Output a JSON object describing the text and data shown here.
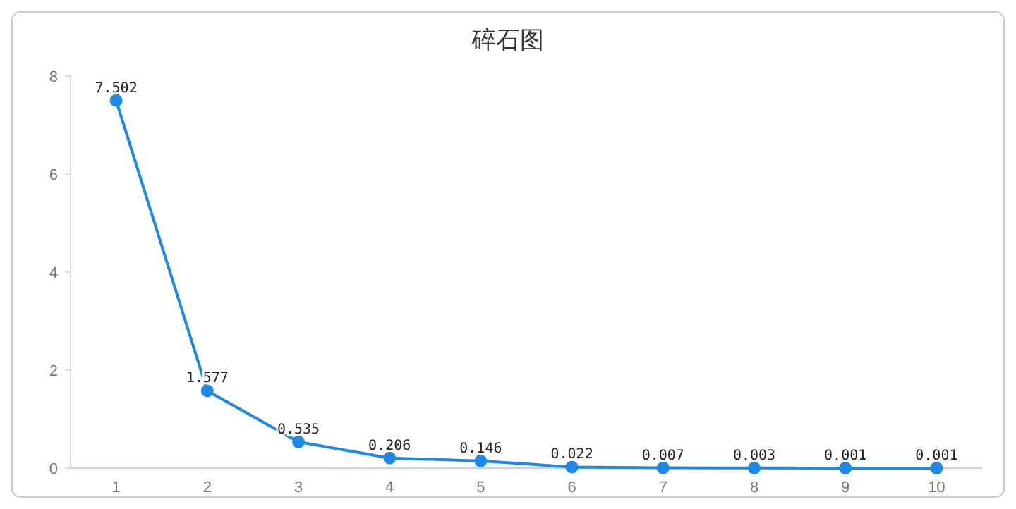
{
  "chart_data": {
    "type": "line",
    "title": "碎石图",
    "categories": [
      "1",
      "2",
      "3",
      "4",
      "5",
      "6",
      "7",
      "8",
      "9",
      "10"
    ],
    "series": [
      {
        "color": "#1e88e5",
        "values": [
          7.502,
          1.577,
          0.535,
          0.206,
          0.146,
          0.022,
          0.007,
          0.003,
          0.001,
          0.001
        ]
      }
    ],
    "ylim": [
      0,
      8
    ],
    "yticks": [
      0,
      2,
      4,
      6,
      8
    ],
    "grid": false,
    "marker": "circle",
    "line_style": "solid",
    "data_labels": true
  }
}
